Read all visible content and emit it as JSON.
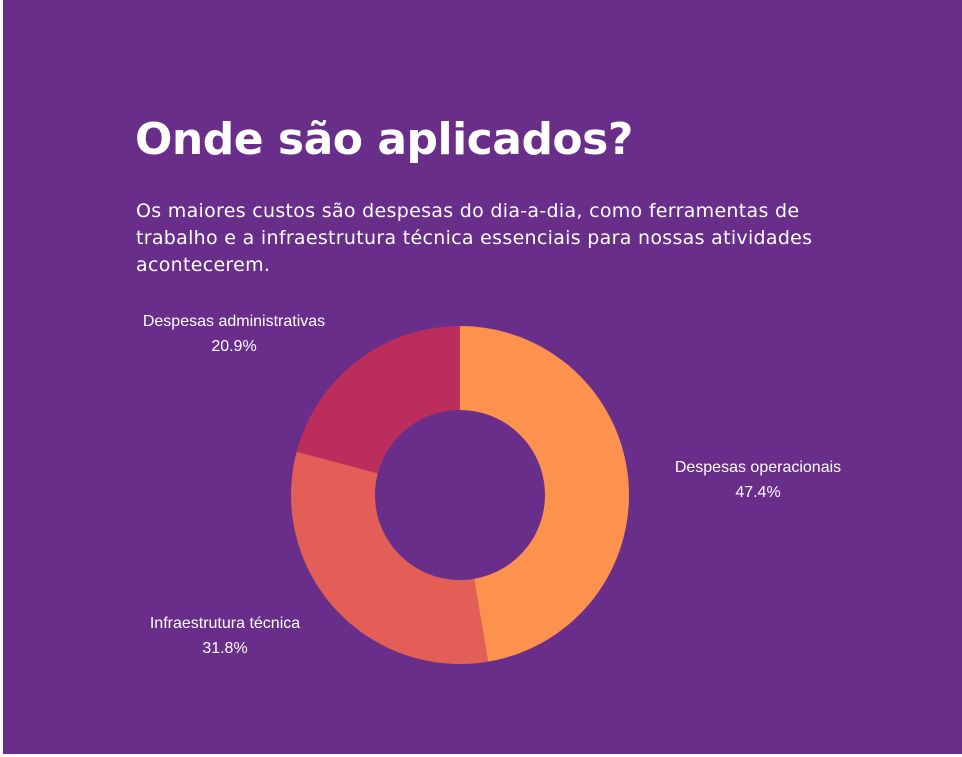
{
  "heading": {
    "title": "Onde são aplicados?",
    "subtitle": "Os maiores custos são despesas do dia-a-dia, como ferramentas de trabalho e a infraestrutura técnica essenciais para nossas atividades acontecerem."
  },
  "colors": {
    "background": "#692e89",
    "text": "#ffffff"
  },
  "chart_data": {
    "type": "pie",
    "variant": "donut",
    "title": "",
    "slices": [
      {
        "label": "Despesas operacionais",
        "value": 47.4,
        "value_label": "47.4%",
        "color": "#fd914e"
      },
      {
        "label": "Infraestrutura técnica",
        "value": 31.8,
        "value_label": "31.8%",
        "color": "#e25e57"
      },
      {
        "label": "Despesas administrativas",
        "value": 20.9,
        "value_label": "20.9%",
        "color": "#bb2d5c"
      }
    ],
    "start": "top",
    "direction": "clockwise",
    "legend": "none",
    "labels": "outside"
  }
}
